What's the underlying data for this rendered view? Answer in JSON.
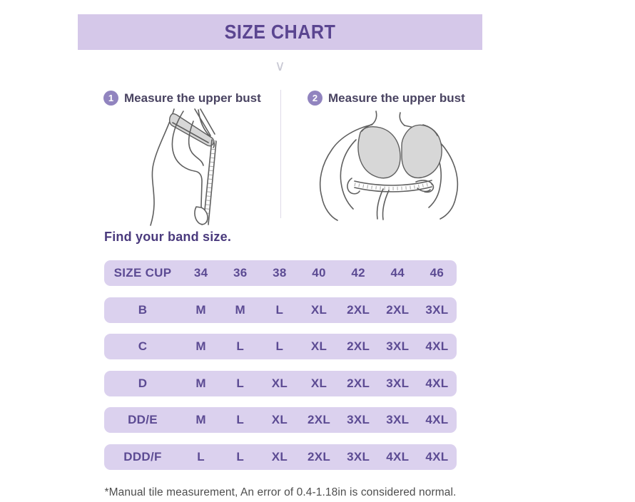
{
  "banner": {
    "title": "SIZE CHART"
  },
  "icons": {
    "chevron_down": "∨"
  },
  "steps": [
    {
      "number": "1",
      "label": "Measure the upper bust"
    },
    {
      "number": "2",
      "label": "Measure the upper bust"
    }
  ],
  "band_section": {
    "heading": "Find your band size."
  },
  "chart_data": {
    "type": "table",
    "title": "SIZE CHART",
    "columns": [
      "SIZE CUP",
      "34",
      "36",
      "38",
      "40",
      "42",
      "44",
      "46"
    ],
    "rows": [
      [
        "B",
        "M",
        "M",
        "L",
        "XL",
        "2XL",
        "2XL",
        "3XL"
      ],
      [
        "C",
        "M",
        "L",
        "L",
        "XL",
        "2XL",
        "3XL",
        "4XL"
      ],
      [
        "D",
        "M",
        "L",
        "XL",
        "XL",
        "2XL",
        "3XL",
        "4XL"
      ],
      [
        "DD/E",
        "M",
        "L",
        "XL",
        "2XL",
        "3XL",
        "3XL",
        "4XL"
      ],
      [
        "DDD/F",
        "L",
        "L",
        "XL",
        "2XL",
        "3XL",
        "4XL",
        "4XL"
      ]
    ]
  },
  "footnote": "*Manual tile measurement, An error of 0.4-1.18in is considered normal.",
  "colors": {
    "banner_bg": "#d5c8e9",
    "title_text": "#5a4590",
    "step_badge": "#9184bf",
    "row_bg": "#dbd1ee",
    "row_text": "#5c4b93",
    "heading_text": "#4a3a7d",
    "footnote_text": "#4e4e4e"
  }
}
